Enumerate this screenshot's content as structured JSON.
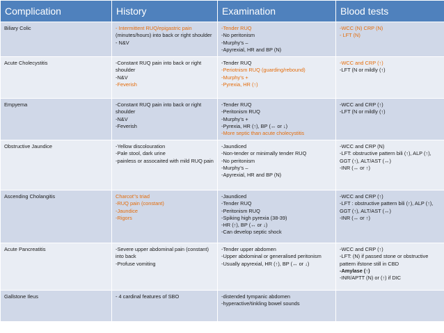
{
  "headers": [
    "Complication",
    "History",
    "Examination",
    "Blood tests"
  ],
  "colors": {
    "header_bg": "#4f81bd",
    "row_odd": "#d0d8e8",
    "row_even": "#e9edf4",
    "highlight": "#e46c0a"
  },
  "rows": [
    {
      "complication": "Biliary Colic",
      "history": [
        {
          "t": "- Intermittent RUQ/epigastric pain",
          "c": "orange"
        },
        {
          "t": "(minutes/hours) into back or right shoulder"
        },
        {
          "t": "- N&V"
        }
      ],
      "examination": [
        {
          "t": "-Tender RUQ",
          "c": "orange"
        },
        {
          "t": "-No peritonism"
        },
        {
          "t": "-Murphy’s –"
        },
        {
          "t": "-Apyrexial, HR and BP (N)"
        }
      ],
      "blood": [
        {
          "t": "-WCC (N) CRP (N)",
          "c": "orange"
        },
        {
          "t": "- LFT (N)",
          "c": "orange"
        }
      ]
    },
    {
      "complication": "Acute Cholecystitis",
      "history": [
        {
          "t": "-Constant RUQ pain into back or right shoulder"
        },
        {
          "t": "-N&V"
        },
        {
          "t": "-Feverish",
          "c": "orange"
        }
      ],
      "examination": [
        {
          "t": "-Tender RUQ"
        },
        {
          "t": "-Periotnism RUQ (guarding/rebound)",
          "c": "orange"
        },
        {
          "t": "-Murphy’s +",
          "c": "orange"
        },
        {
          "t": "-Pyrexia, HR (↑)",
          "c": "orange"
        }
      ],
      "blood": [
        {
          "t": "-WCC and CRP (↑)",
          "c": "orange"
        },
        {
          "t": "-LFT (N or mildly (↑)"
        }
      ]
    },
    {
      "complication": "Empyema",
      "history": [
        {
          "t": "-Constant RUQ pain into back or right shoulder"
        },
        {
          "t": "-N&V"
        },
        {
          "t": "-Feverish"
        }
      ],
      "examination": [
        {
          "t": "-Tender RUQ"
        },
        {
          "t": "-Peritonism RUQ"
        },
        {
          "t": "-Murphy’s +"
        },
        {
          "t": "-Pyrexia, HR (↑), BP (↔ or ↓)"
        },
        {
          "t": "-More septic than acute cholecystitis",
          "c": "orange"
        }
      ],
      "blood": [
        {
          "t": "-WCC and CRP (↑)"
        },
        {
          "t": "-LFT (N or mildly (↑)"
        }
      ]
    },
    {
      "complication": "Obstructive Jaundice",
      "history": [
        {
          "t": "-Yellow discolouration"
        },
        {
          "t": "-Pale stool, dark urine"
        },
        {
          "t": "-painless or assocaited with mild RUQ pain"
        }
      ],
      "examination": [
        {
          "t": "-Jaundiced"
        },
        {
          "t": "-Non-tender or minimally tender RUQ"
        },
        {
          "t": "-No peritonism"
        },
        {
          "t": "-Murphy’s –"
        },
        {
          "t": "-Apyrexial, HR and BP (N)"
        }
      ],
      "blood": [
        {
          "t": "-WCC and CRP (N)"
        },
        {
          "t": "-LFT: obstructive pattern bili (↑), ALP (↑), GGT (↑), ALT/AST (↔)"
        },
        {
          "t": "-INR (↔ or ↑)"
        }
      ]
    },
    {
      "complication": "Ascending Cholangitis",
      "history": [
        {
          "t": "Charcot’’s triad",
          "c": "orange"
        },
        {
          "t": "-RUQ pain (constant)",
          "c": "orange"
        },
        {
          "t": "-Jaundice",
          "c": "orange"
        },
        {
          "t": "-Rigors",
          "c": "orange"
        }
      ],
      "examination": [
        {
          "t": "-Jaundiced"
        },
        {
          "t": "-Tender RUQ"
        },
        {
          "t": "-Peritonism RUQ"
        },
        {
          "t": "-Spiking high pyrexia (38-39)"
        },
        {
          "t": "-HR (↑), BP (↔ or ↓)"
        },
        {
          "t": "-Can develop septic shock"
        }
      ],
      "blood": [
        {
          "t": "-WCC and CRP (↑)"
        },
        {
          "t": "-LFT : obstructive pattern bili (↑), ALP (↑), GGT (↑), ALT/AST (↔)"
        },
        {
          "t": "-INR (↔ or ↑)"
        }
      ]
    },
    {
      "complication": "Acute Pancreatitis",
      "history": [
        {
          "t": "-Severe upper abdominal pain (constant) into back"
        },
        {
          "t": "-Profuse vomiting"
        }
      ],
      "examination": [
        {
          "t": "-Tender upper abdomen"
        },
        {
          "t": "-Upper abdominal or generalised peritonism"
        },
        {
          "t": "-Usually apyrexial, HR (↑), BP (↔ or ↓)"
        }
      ],
      "blood": [
        {
          "t": "-WCC and CRP (↑)"
        },
        {
          "t": "-LFT: (N) if passed stone or obstructive pattern ifstone still in CBD"
        },
        {
          "t": "-Amylase (↑)",
          "c": "bold"
        },
        {
          "t": "-INR/APTT (N) or (↑) if DIC"
        }
      ]
    },
    {
      "complication": "Gallstone Ileus",
      "history": [
        {
          "t": "- 4 cardinal features of SBO"
        }
      ],
      "examination": [
        {
          "t": "-distended tympanic abdomen"
        },
        {
          "t": "-hyperactive/tinkling bowel sounds"
        }
      ],
      "blood": []
    }
  ]
}
